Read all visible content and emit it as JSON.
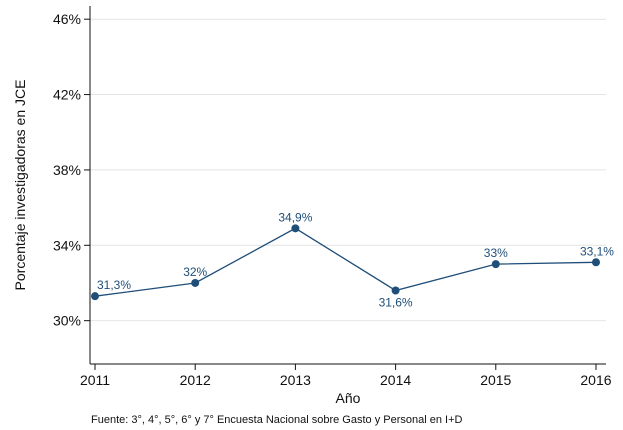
{
  "chart_data": {
    "type": "line",
    "title": "",
    "xlabel": "Año",
    "ylabel": "Porcentaje investigadoras en JCE",
    "x": [
      2011,
      2012,
      2013,
      2014,
      2015,
      2016
    ],
    "series": [
      {
        "values": [
          31.3,
          32.0,
          34.9,
          31.6,
          33.0,
          33.1
        ],
        "data_labels": [
          "31,3%",
          "32%",
          "34,9%",
          "31,6%",
          "33%",
          "33,1%"
        ]
      }
    ],
    "yticks": [
      30,
      34,
      38,
      42,
      46
    ],
    "ytick_labels": [
      "30%",
      "34%",
      "38%",
      "42%",
      "46%"
    ],
    "xtick_labels": [
      "2011",
      "2012",
      "2013",
      "2014",
      "2015",
      "2016"
    ],
    "ylim": [
      27.7,
      46.7
    ],
    "xlim": [
      2010.95,
      2016.1
    ],
    "grid": true,
    "line_color": "#1f4e79",
    "grid_color": "#e4e4e4",
    "note": "Fuente: 3°, 4°, 5°, 6° y 7° Encuesta Nacional sobre Gasto y Personal en I+D"
  }
}
